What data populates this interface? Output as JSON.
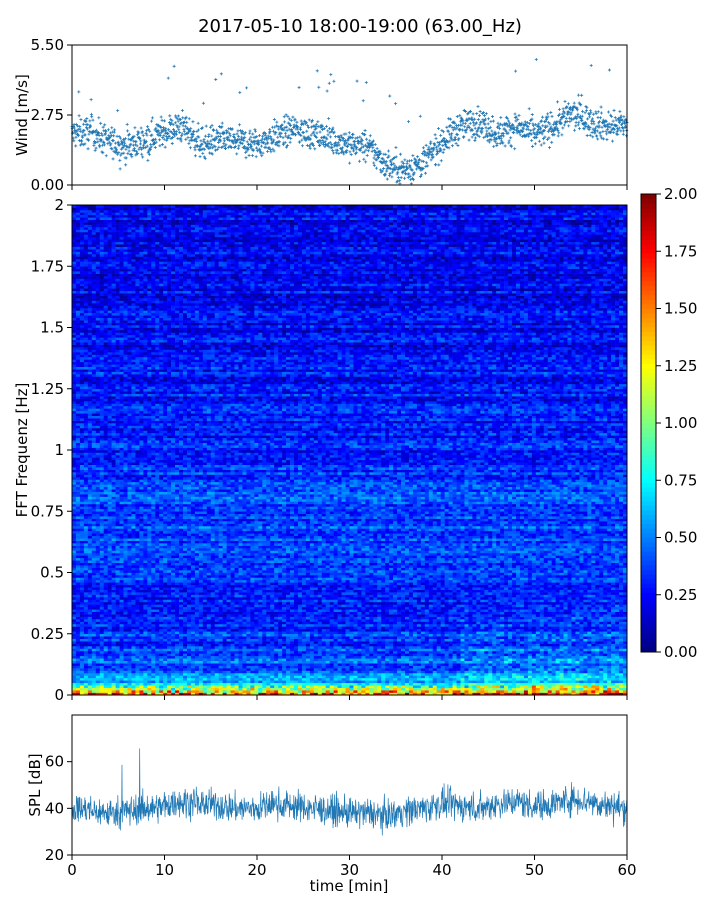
{
  "figure": {
    "title": "2017-05-10 18:00-19:00 (63.00_Hz)",
    "xlabel": "time [min]"
  },
  "colors": {
    "series": "#1f77b4",
    "axes": "#000000",
    "jet": [
      "#00007f",
      "#0000ff",
      "#007fff",
      "#00ffff",
      "#7fff7f",
      "#ffff00",
      "#ff7f00",
      "#ff0000",
      "#7f0000"
    ]
  },
  "chart_data": [
    {
      "id": "wind",
      "type": "scatter",
      "ylabel": "Wind [m/s]",
      "xlim": [
        0,
        60
      ],
      "ylim": [
        0,
        5.5
      ],
      "yticks": [
        0.0,
        2.75,
        5.5
      ],
      "ytick_labels": [
        "0.00",
        "2.75",
        "5.50"
      ],
      "xticks": [
        0,
        10,
        20,
        30,
        40,
        50,
        60
      ],
      "show_xtick_labels": false,
      "marker": "+",
      "series": [
        {
          "x": [
            0,
            2,
            4,
            6,
            8,
            10,
            12,
            14,
            16,
            18,
            20,
            22,
            24,
            26,
            28,
            30,
            32,
            34,
            36,
            38,
            40,
            42,
            44,
            46,
            48,
            50,
            52,
            54,
            56,
            58,
            60
          ],
          "y": [
            2.0,
            2.1,
            1.7,
            1.5,
            1.8,
            2.1,
            2.3,
            1.6,
            1.8,
            1.7,
            1.6,
            1.9,
            2.2,
            2.0,
            1.8,
            1.6,
            1.5,
            0.8,
            0.6,
            0.9,
            1.7,
            2.3,
            2.5,
            2.0,
            2.3,
            2.0,
            2.3,
            2.8,
            2.5,
            2.3,
            2.4
          ]
        }
      ]
    },
    {
      "id": "spectrogram",
      "type": "heatmap",
      "ylabel": "FFT Frequenz [Hz]",
      "xlim": [
        0,
        60
      ],
      "ylim": [
        0,
        2
      ],
      "yticks": [
        0,
        0.25,
        0.5,
        0.75,
        1,
        1.25,
        1.5,
        1.75,
        2
      ],
      "ytick_labels": [
        "0",
        "0.25",
        "0.5",
        "0.75",
        "1",
        "1.25",
        "1.5",
        "1.75",
        "2"
      ],
      "xticks": [
        0,
        10,
        20,
        30,
        40,
        50,
        60
      ],
      "show_xtick_labels": false,
      "colormap": "jet",
      "colorbar": {
        "range": [
          0.0,
          2.0
        ],
        "ticks": [
          0.0,
          0.25,
          0.5,
          0.75,
          1.0,
          1.25,
          1.5,
          1.75,
          2.0
        ],
        "tick_labels": [
          "0.00",
          "0.25",
          "0.50",
          "0.75",
          "1.00",
          "1.25",
          "1.50",
          "1.75",
          "2.00"
        ]
      },
      "freq_profile": {
        "freq": [
          0,
          0.02,
          0.05,
          0.1,
          0.2,
          0.4,
          0.75,
          1.0,
          1.5,
          2.0
        ],
        "value": [
          1.6,
          1.0,
          0.6,
          0.45,
          0.35,
          0.3,
          0.4,
          0.3,
          0.25,
          0.22
        ]
      }
    },
    {
      "id": "spl",
      "type": "line",
      "ylabel": "SPL [dB]",
      "xlim": [
        0,
        60
      ],
      "ylim": [
        20,
        80
      ],
      "yticks": [
        20,
        40,
        60
      ],
      "ytick_labels": [
        "20",
        "40",
        "60"
      ],
      "xticks": [
        0,
        10,
        20,
        30,
        40,
        50,
        60
      ],
      "xtick_labels": [
        "0",
        "10",
        "20",
        "30",
        "40",
        "50",
        "60"
      ],
      "series": [
        {
          "x": [
            0,
            2,
            4,
            6,
            8,
            10,
            12,
            14,
            16,
            18,
            20,
            22,
            24,
            26,
            28,
            30,
            32,
            34,
            36,
            38,
            40,
            42,
            44,
            46,
            48,
            50,
            52,
            54,
            56,
            58,
            60
          ],
          "y": [
            40,
            39,
            38,
            39,
            40,
            41,
            43,
            42,
            41,
            40,
            40,
            42,
            41,
            40,
            39,
            38,
            38,
            37,
            39,
            40,
            42,
            41,
            40,
            42,
            43,
            41,
            42,
            44,
            43,
            41,
            40
          ]
        }
      ]
    }
  ]
}
